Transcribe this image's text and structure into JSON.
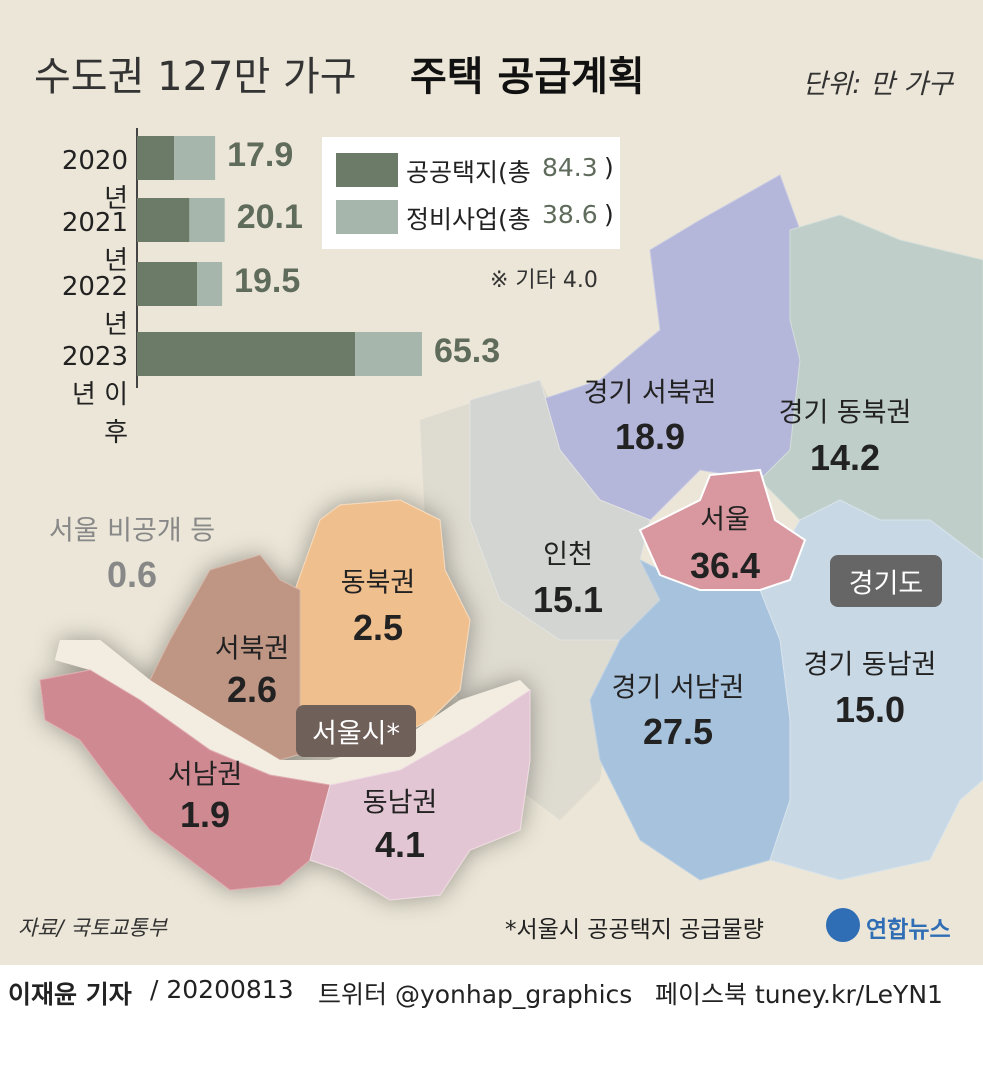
{
  "header": {
    "title": "수도권 127만 가구",
    "title_bold": "주택 공급계획",
    "unit": "단위: 만 가구"
  },
  "chart_data": {
    "type": "bar",
    "orientation": "horizontal",
    "stacked": true,
    "categories": [
      "2020년",
      "2021년",
      "2022년",
      "2023년 이후"
    ],
    "series": [
      {
        "name": "공공택지(총",
        "total": 84.3,
        "suffix": ")",
        "color": "#6c7a68",
        "values": [
          8.5,
          12,
          13.8,
          50
        ]
      },
      {
        "name": "정비사업(총",
        "total": 38.6,
        "suffix": ")",
        "color": "#a6b6ac",
        "values": [
          9.4,
          8.1,
          5.7,
          15.3
        ]
      }
    ],
    "totals": [
      17.9,
      20.1,
      19.5,
      65.3
    ],
    "note": "※ 기타 4.0"
  },
  "map": {
    "seoul_detail": {
      "label": "서울시*",
      "regions": [
        {
          "label": "동북권",
          "value": 2.5
        },
        {
          "label": "서북권",
          "value": 2.6
        },
        {
          "label": "서남권",
          "value": 1.9
        },
        {
          "label": "동남권",
          "value": 4.1
        }
      ],
      "undisclosed": {
        "label": "서울 비공개 등",
        "value": 0.6
      }
    },
    "capital_area": {
      "label": "경기도",
      "regions": [
        {
          "label": "인천",
          "value": 15.1,
          "value_label": "15.1"
        },
        {
          "label": "서울",
          "value": 36.4,
          "value_label": "36.4"
        },
        {
          "label": "경기 서북권",
          "value": 18.9,
          "value_label": "18.9"
        },
        {
          "label": "경기 동북권",
          "value": 14.2,
          "value_label": "14.2"
        },
        {
          "label": "경기 서남권",
          "value": 27.5,
          "value_label": "27.5"
        },
        {
          "label": "경기 동남권",
          "value": 15,
          "value_label": "15.0"
        }
      ]
    }
  },
  "footer": {
    "source": "자료/ 국토교통부",
    "footnote": "*서울시 공공택지 공급물량",
    "logo": "연합뉴스",
    "reporter": "이재윤 기자",
    "date": "/ 20200813",
    "twitter": "트위터 @yonhap_graphics",
    "facebook": "페이스북 tuney.kr/LeYN1"
  }
}
